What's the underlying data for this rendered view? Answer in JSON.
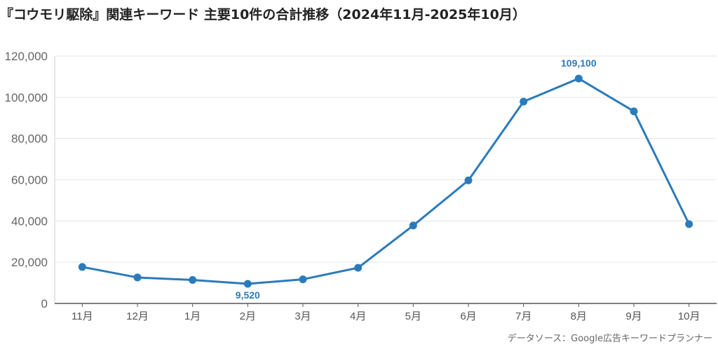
{
  "chart_data": {
    "type": "line",
    "title": "『コウモリ駆除』関連キーワード 主要10件の合計推移（2024年11月-2025年10月）",
    "categories": [
      "11月",
      "12月",
      "1月",
      "2月",
      "3月",
      "4月",
      "5月",
      "6月",
      "7月",
      "8月",
      "9月",
      "10月"
    ],
    "series": [
      {
        "values": [
          17700,
          12600,
          11400,
          9520,
          11700,
          17300,
          37800,
          59700,
          97900,
          109100,
          93200,
          38500
        ]
      }
    ],
    "ylim": [
      0,
      120000
    ],
    "yticks": [
      0,
      20000,
      40000,
      60000,
      80000,
      100000,
      120000
    ],
    "ytick_labels": [
      "0",
      "20,000",
      "40,000",
      "60,000",
      "80,000",
      "100,000",
      "120,000"
    ],
    "annotations": [
      {
        "index": 3,
        "text": "9,520",
        "position": "below"
      },
      {
        "index": 9,
        "text": "109,100",
        "position": "above"
      }
    ],
    "grid": true,
    "line_color": "#2b7bba",
    "annotation_color": "#2b7bba"
  },
  "source": "データソース：Google広告キーワードプランナー"
}
